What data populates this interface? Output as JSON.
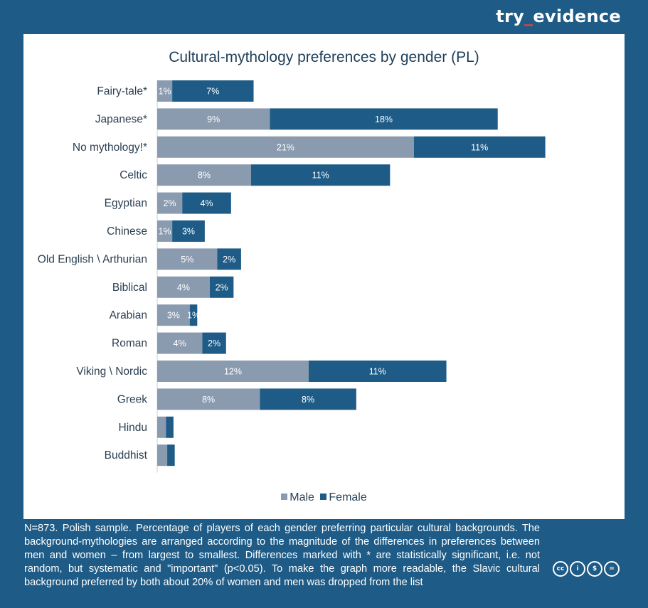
{
  "brand": {
    "prefix": "try",
    "separator": "_",
    "suffix": "evidence"
  },
  "colors": {
    "background": "#1e5b86",
    "male": "#8a9bb0",
    "female": "#1e5b86"
  },
  "chart_data": {
    "type": "bar",
    "orientation": "horizontal",
    "stacked": true,
    "title": "Cultural-mythology preferences by gender (PL)",
    "xlabel": "",
    "ylabel": "",
    "unit": "%",
    "categories": [
      "Fairy-tale*",
      "Japanese*",
      "No mythology!*",
      "Celtic",
      "Egyptian",
      "Chinese",
      "Old English \\ Arthurian",
      "Biblical",
      "Arabian",
      "Roman",
      "Viking \\ Nordic",
      "Greek",
      "Hindu",
      "Buddhist"
    ],
    "series": [
      {
        "name": "Male",
        "color": "#8a9bb0",
        "values": [
          1.2,
          9,
          20.5,
          7.5,
          2,
          1.2,
          4.8,
          4.2,
          2.6,
          3.6,
          12.1,
          8.2,
          0.7,
          0.8
        ],
        "labels": [
          "1%",
          "9%",
          "21%",
          "8%",
          "2%",
          "1%",
          "5%",
          "4%",
          "3%",
          "4%",
          "12%",
          "8%",
          "",
          ""
        ]
      },
      {
        "name": "Female",
        "color": "#1e5b86",
        "values": [
          6.5,
          18.2,
          10.5,
          11.1,
          3.9,
          2.6,
          1.9,
          1.9,
          0.6,
          1.9,
          11.0,
          7.7,
          0.6,
          0.6
        ],
        "labels": [
          "7%",
          "18%",
          "11%",
          "11%",
          "4%",
          "3%",
          "2%",
          "2%",
          "1%",
          "2%",
          "11%",
          "8%",
          "",
          ""
        ]
      }
    ],
    "xlim": [
      0,
      32
    ],
    "grid": false,
    "legend_position": "bottom"
  },
  "footnote": "N=873. Polish sample. Percentage of players of each gender preferring particular cultural backgrounds. The background-mythologies are arranged according to the magnitude of the differences in preferences between men and women – from largest to smallest. Differences marked with * are statistically significant, i.e. not random, but systematic and \"important\" (p<0.05). To make the graph more readable, the Slavic cultural background preferred by both about 20% of women and men was dropped from the list",
  "license_icons": [
    "cc-icon",
    "by-icon",
    "nc-icon",
    "nd-icon"
  ],
  "license_glyphs": [
    "cc",
    "i",
    "$",
    "="
  ]
}
